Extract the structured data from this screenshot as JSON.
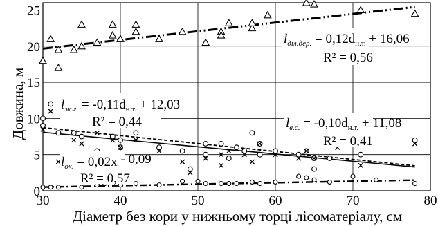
{
  "chart_data": {
    "type": "scatter",
    "xlabel": "Діаметр без кори у нижньому торці лісоматеріалу, см",
    "ylabel": "Довжина, м",
    "xlim": [
      30,
      80
    ],
    "ylim": [
      0,
      26
    ],
    "xticks": [
      "30",
      "40",
      "50",
      "60",
      "70",
      "80"
    ],
    "yticks": [
      "0",
      "5",
      "10",
      "15",
      "20",
      "25"
    ],
    "grid": true,
    "series": [
      {
        "marker": "triangle",
        "x": [
          30,
          31,
          32,
          32,
          34,
          35,
          35,
          37,
          39,
          39,
          40,
          42,
          42,
          45,
          48,
          51,
          53,
          53,
          54,
          57,
          57,
          59,
          64,
          65,
          71,
          78
        ],
        "y": [
          18,
          21,
          17,
          19.5,
          19.5,
          20,
          23,
          20.5,
          21.5,
          23,
          21,
          22,
          23,
          21,
          22,
          20.5,
          22,
          21.5,
          23.2,
          22.5,
          23.2,
          24.3,
          26,
          25.8,
          25,
          24.5
        ],
        "fit": {
          "slope": 0.12,
          "intercept": 16.06
        },
        "equation": {
          "pre": "l",
          "sub": "діл.дер.",
          "mid": " = 0,12d",
          "sub2": "н.т.",
          "post": " + 16,06",
          "r2": "R² = 0,56"
        }
      },
      {
        "marker": "circle",
        "x": [
          30,
          30,
          31,
          32,
          34,
          35,
          37,
          39,
          40,
          40,
          42,
          45,
          48,
          49,
          51,
          51,
          53,
          54,
          55,
          56,
          57,
          58,
          58,
          60,
          63,
          64,
          65,
          65,
          67,
          71,
          78
        ],
        "y": [
          10,
          9,
          12,
          8,
          8,
          7.5,
          5.5,
          7.5,
          7,
          6,
          8,
          6,
          5.5,
          3,
          6.5,
          5,
          6.5,
          4.5,
          6,
          5.5,
          8,
          6.5,
          5,
          5.5,
          5,
          5.5,
          4.5,
          3,
          4.5,
          5,
          7
        ],
        "fit": {
          "slope": -0.1,
          "intercept": 11.08
        },
        "equation": {
          "pre": "l",
          "sub": "в.с.",
          "mid": " = -0,10d",
          "sub2": "н.т.",
          "post": " + 11,08",
          "r2": "R² = 0,41"
        }
      },
      {
        "marker": "cross",
        "x": [
          30,
          31,
          32,
          34,
          35,
          37,
          39,
          40,
          42,
          45,
          48,
          49,
          51,
          53,
          53,
          54,
          56,
          57,
          58,
          60,
          63,
          64,
          65,
          68,
          71,
          78
        ],
        "y": [
          8.5,
          11,
          4,
          7,
          6.5,
          8,
          7,
          6,
          7,
          5.5,
          4,
          2.5,
          4.5,
          3.5,
          5,
          5.5,
          5,
          4,
          6.5,
          5,
          4.5,
          5.5,
          4.5,
          6,
          3.5,
          6.5
        ],
        "fit": {
          "slope": -0.11,
          "intercept": 12.03
        },
        "equation": {
          "pre": "l",
          "sub": "ж.г.",
          "mid": " = -0,11d",
          "sub2": "н.т.",
          "post": " + 12,03",
          "r2": "R² = 0,44"
        }
      },
      {
        "marker": "small-circle",
        "x": [
          30,
          31,
          32,
          35,
          37,
          38,
          40,
          42,
          45,
          48,
          50,
          51,
          53,
          54,
          55,
          57,
          58,
          60,
          63,
          64,
          65,
          67,
          70,
          73,
          78
        ],
        "y": [
          0.5,
          0.5,
          0.5,
          0.5,
          0.8,
          1,
          0.8,
          1,
          0.8,
          1.3,
          1.3,
          1,
          1,
          1,
          1,
          1.2,
          1,
          1.2,
          2,
          1.8,
          1.5,
          1.2,
          2,
          1.5,
          1
        ],
        "fit": {
          "slope": 0.02,
          "intercept": -0.09
        },
        "equation": {
          "pre": "l",
          "sub": "ок.",
          "mid": " = 0,02x",
          "sub2": "",
          "post": " - 0,09",
          "r2": "R² = 0,57"
        }
      }
    ]
  }
}
